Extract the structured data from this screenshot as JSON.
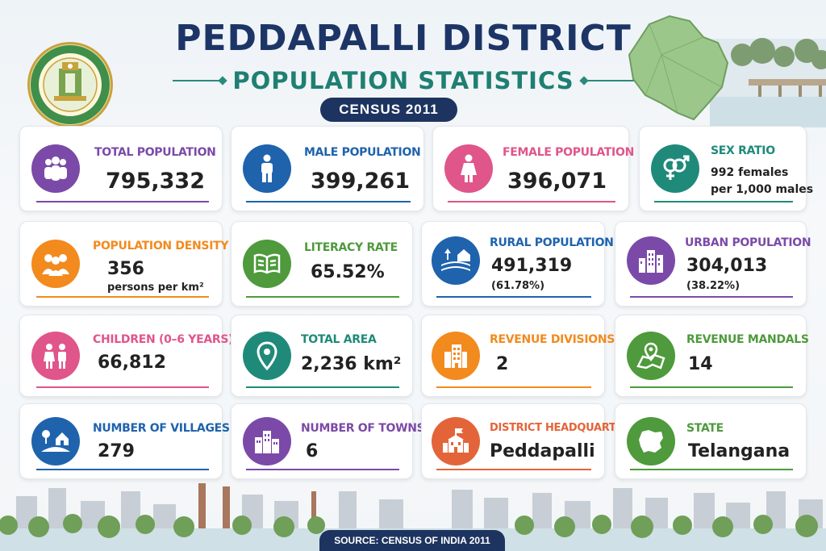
{
  "header": {
    "title": "PEDDAPALLI DISTRICT",
    "subtitle": "POPULATION STATISTICS",
    "census_badge": "CENSUS 2011",
    "seal_text_top": "GOVERNMENT OF TELANGANA"
  },
  "colors": {
    "purple": "#7b4aa8",
    "blue": "#1f63ad",
    "pink": "#e0558a",
    "teal": "#1f8a7a",
    "orange": "#f28a1e",
    "green": "#4e9a3c",
    "navy": "#1e3460"
  },
  "cards": [
    {
      "label": "TOTAL POPULATION",
      "value": "795,332",
      "icon": "people-group-icon"
    },
    {
      "label": "MALE POPULATION",
      "value": "399,261",
      "icon": "male-icon"
    },
    {
      "label": "FEMALE POPULATION",
      "value": "396,071",
      "icon": "female-icon"
    },
    {
      "label": "SEX RATIO",
      "sub1": "992 females",
      "sub2": "per 1,000 males",
      "icon": "gender-symbols-icon"
    },
    {
      "label": "POPULATION DENSITY",
      "value": "356",
      "sub1": "persons per km²",
      "icon": "crowd-icon"
    },
    {
      "label": "LITERACY RATE",
      "value": "65.52%",
      "icon": "open-book-icon"
    },
    {
      "label": "RURAL POPULATION",
      "value": "491,319",
      "sub1": "(61.78%)",
      "icon": "rural-house-icon"
    },
    {
      "label": "URBAN POPULATION",
      "value": "304,013",
      "sub1": "(38.22%)",
      "icon": "city-buildings-icon"
    },
    {
      "label": "CHILDREN (0–6 YEARS)",
      "value": "66,812",
      "icon": "children-icon"
    },
    {
      "label": "TOTAL AREA",
      "value": "2,236 km²",
      "icon": "location-pin-icon"
    },
    {
      "label": "REVENUE DIVISIONS",
      "value": "2",
      "icon": "office-building-icon"
    },
    {
      "label": "REVENUE MANDALS",
      "value": "14",
      "icon": "map-pin-icon"
    },
    {
      "label": "NUMBER OF VILLAGES",
      "value": "279",
      "icon": "village-icon"
    },
    {
      "label": "NUMBER OF TOWNS",
      "value": "6",
      "icon": "town-buildings-icon"
    },
    {
      "label": "DISTRICT HEADQUARTERS",
      "value": "Peddapalli",
      "icon": "headquarters-icon"
    },
    {
      "label": "STATE",
      "value": "Telangana",
      "icon": "state-map-icon"
    }
  ],
  "footer": {
    "source": "SOURCE: CENSUS OF INDIA 2011"
  }
}
